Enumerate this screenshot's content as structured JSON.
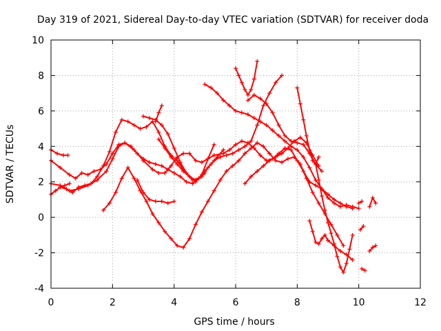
{
  "chart_data": {
    "type": "scatter",
    "title": "Day 319 of 2021, Sidereal Day-to-day VTEC variation (SDTVAR) for receiver doda",
    "xlabel": "GPS time / hours",
    "ylabel": "SDTVAR / TECUs",
    "xlim": [
      0,
      12
    ],
    "ylim": [
      -4,
      10
    ],
    "xticks": [
      0,
      2,
      4,
      6,
      8,
      10,
      12
    ],
    "yticks": [
      -4,
      -2,
      0,
      2,
      4,
      6,
      8,
      10
    ],
    "grid": true,
    "marker": "plus",
    "color": "#ff0000",
    "series": [
      {
        "x": [
          0.0,
          0.2,
          0.4,
          0.55
        ],
        "y": [
          3.8,
          3.6,
          3.5,
          3.5
        ]
      },
      {
        "x": [
          0.0,
          0.15,
          0.3,
          0.45,
          0.6
        ],
        "y": [
          1.3,
          1.5,
          1.7,
          1.8,
          1.9
        ]
      },
      {
        "x": [
          0.0,
          0.3,
          0.6,
          0.8,
          1.0,
          1.2,
          1.4,
          1.6,
          1.8,
          2.0,
          2.2,
          2.4,
          2.7,
          3.0,
          3.3,
          3.5,
          3.7,
          3.9,
          4.1,
          4.3,
          4.5,
          4.7,
          4.9,
          5.1,
          5.3,
          5.6,
          5.8,
          6.0,
          6.2,
          6.4,
          6.6,
          6.8,
          7.0,
          7.2,
          7.4,
          7.6,
          7.8,
          8.0,
          8.2,
          8.4,
          8.6,
          8.8,
          9.0,
          9.2,
          9.4,
          9.6,
          9.8
        ],
        "y": [
          3.2,
          2.8,
          2.4,
          2.2,
          2.5,
          2.4,
          2.6,
          2.7,
          3.0,
          3.6,
          4.1,
          4.2,
          3.8,
          3.2,
          2.7,
          2.5,
          2.5,
          2.9,
          3.4,
          3.6,
          3.6,
          3.2,
          3.1,
          3.3,
          3.5,
          3.6,
          3.8,
          4.1,
          4.3,
          4.2,
          3.9,
          3.5,
          3.2,
          3.3,
          3.6,
          3.9,
          3.8,
          3.2,
          2.6,
          2.0,
          1.8,
          1.6,
          1.3,
          1.0,
          0.8,
          0.6,
          0.5
        ]
      },
      {
        "x": [
          0.0,
          0.3,
          0.6,
          0.9,
          1.2,
          1.5,
          1.8,
          2.0,
          2.2,
          2.4,
          2.6,
          2.8,
          3.0,
          3.2,
          3.4,
          3.6,
          3.8,
          4.0,
          4.2,
          4.4,
          4.6,
          4.8,
          5.0,
          5.2,
          5.4,
          5.6
        ],
        "y": [
          1.9,
          1.8,
          1.5,
          1.6,
          1.8,
          2.1,
          2.6,
          3.3,
          4.0,
          4.2,
          4.0,
          3.6,
          3.3,
          3.1,
          3.0,
          2.9,
          2.7,
          2.5,
          2.3,
          2.0,
          1.9,
          2.2,
          2.6,
          3.0,
          3.4,
          3.8
        ]
      },
      {
        "x": [
          0.3,
          0.5,
          0.7,
          0.9,
          1.1,
          1.3,
          1.5,
          1.7,
          1.9,
          2.1,
          2.3,
          2.5,
          2.7,
          2.9,
          3.1,
          3.3,
          3.5,
          3.7,
          3.9,
          4.1,
          4.3,
          4.5,
          4.7,
          4.9,
          5.1,
          5.3,
          5.5,
          5.7,
          5.9,
          6.1,
          6.3,
          6.5,
          6.7,
          6.9,
          7.1,
          7.3,
          7.5
        ],
        "y": [
          1.7,
          1.6,
          1.4,
          1.7,
          1.8,
          1.9,
          2.3,
          2.9,
          3.7,
          4.8,
          5.5,
          5.4,
          5.2,
          5.0,
          5.1,
          5.4,
          4.8,
          4.0,
          3.5,
          3.2,
          2.7,
          2.3,
          2.1,
          2.3,
          2.8,
          3.2,
          3.4,
          3.5,
          3.6,
          3.8,
          4.0,
          4.3,
          5.2,
          6.3,
          7.0,
          7.6,
          8.0
        ]
      },
      {
        "x": [
          1.7,
          1.9,
          2.1,
          2.3,
          2.5,
          2.7,
          2.9,
          3.1,
          3.3,
          3.5,
          3.7,
          3.9,
          4.1,
          4.3,
          4.5,
          4.7,
          4.9,
          5.1,
          5.3,
          5.5,
          5.7,
          5.9,
          6.1,
          6.3,
          6.5,
          6.7,
          6.9,
          7.1,
          7.3,
          7.5,
          7.7,
          7.9,
          8.1,
          8.3,
          8.5,
          8.7,
          8.9,
          9.1,
          9.3,
          9.5
        ],
        "y": [
          0.4,
          0.8,
          1.4,
          2.2,
          2.8,
          2.2,
          1.5,
          0.9,
          0.2,
          -0.3,
          -0.8,
          -1.2,
          -1.6,
          -1.7,
          -1.2,
          -0.4,
          0.3,
          0.9,
          1.5,
          2.1,
          2.6,
          2.9,
          3.2,
          3.6,
          3.9,
          4.2,
          4.0,
          3.6,
          3.2,
          3.1,
          3.3,
          3.4,
          3.0,
          2.2,
          1.4,
          0.8,
          0.2,
          -0.4,
          -1.0,
          -1.6
        ]
      },
      {
        "x": [
          3.0,
          3.2,
          3.4,
          3.6,
          3.8,
          4.0,
          4.2,
          4.4,
          4.6,
          4.8,
          5.0
        ],
        "y": [
          5.7,
          5.6,
          5.5,
          5.2,
          4.7,
          3.9,
          3.1,
          2.5,
          2.1,
          2.2,
          2.5
        ]
      },
      {
        "x": [
          2.8,
          3.0,
          3.2,
          3.4,
          3.6,
          3.8,
          4.0
        ],
        "y": [
          2.1,
          1.4,
          1.0,
          0.9,
          0.9,
          0.8,
          0.9
        ]
      },
      {
        "x": [
          3.4,
          3.5,
          3.6
        ],
        "y": [
          5.4,
          5.9,
          6.3
        ]
      },
      {
        "x": [
          3.5,
          3.7,
          3.9,
          4.1,
          4.3,
          4.5,
          4.7,
          4.9,
          5.1,
          5.3
        ],
        "y": [
          4.4,
          3.9,
          3.4,
          3.0,
          2.6,
          2.3,
          2.0,
          2.4,
          3.3,
          4.1
        ]
      },
      {
        "x": [
          5.0,
          5.2,
          5.4,
          5.6,
          5.8,
          6.0,
          6.2,
          6.4,
          6.6,
          6.8,
          7.0,
          7.2,
          7.4,
          7.6,
          7.8,
          8.0,
          8.2,
          8.4,
          8.6,
          8.8,
          9.0,
          9.2,
          9.4,
          9.6,
          9.8,
          10.0
        ],
        "y": [
          7.5,
          7.3,
          7.0,
          6.6,
          6.3,
          6.0,
          5.9,
          5.8,
          5.6,
          5.4,
          5.2,
          4.9,
          4.6,
          4.3,
          4.0,
          3.8,
          3.4,
          2.8,
          2.1,
          1.6,
          1.1,
          0.8,
          0.6,
          0.7,
          0.6,
          0.5
        ]
      },
      {
        "x": [
          6.0,
          6.1,
          6.2,
          6.3,
          6.4,
          6.5,
          6.6,
          6.7
        ],
        "y": [
          8.4,
          8.0,
          7.6,
          7.2,
          6.9,
          7.2,
          7.8,
          8.8
        ]
      },
      {
        "x": [
          6.4,
          6.6,
          6.8,
          7.0,
          7.2,
          7.4,
          7.6,
          7.8,
          8.0,
          8.2,
          8.4,
          8.6,
          8.8
        ],
        "y": [
          6.6,
          6.9,
          6.7,
          6.4,
          5.9,
          5.2,
          4.6,
          4.3,
          4.2,
          4.1,
          3.6,
          3.0,
          2.6
        ]
      },
      {
        "x": [
          6.3,
          6.5,
          6.7,
          6.9,
          7.1,
          7.3,
          7.5,
          7.7,
          7.9,
          8.1,
          8.3,
          8.5,
          8.7
        ],
        "y": [
          1.9,
          2.3,
          2.6,
          2.9,
          3.2,
          3.4,
          3.6,
          3.9,
          4.3,
          4.5,
          4.2,
          3.5,
          2.9
        ]
      },
      {
        "x": [
          8.0,
          8.1,
          8.2,
          8.3,
          8.4,
          8.5,
          8.6,
          8.7
        ],
        "y": [
          7.3,
          6.4,
          5.5,
          4.6,
          3.8,
          3.2,
          3.0,
          3.4
        ]
      },
      {
        "x": [
          8.6,
          8.7,
          8.8,
          8.9,
          9.0,
          9.1,
          9.2,
          9.3,
          9.4,
          9.5,
          9.6,
          9.7,
          9.8
        ],
        "y": [
          3.0,
          2.1,
          1.2,
          0.4,
          -0.3,
          -0.9,
          -1.5,
          -2.2,
          -2.8,
          -3.1,
          -2.6,
          -1.8,
          -1.0
        ]
      },
      {
        "x": [
          8.4,
          8.5,
          8.6,
          8.7,
          8.8,
          8.9,
          9.0,
          9.2,
          9.4,
          9.6,
          9.8
        ],
        "y": [
          -0.2,
          -0.8,
          -1.4,
          -1.5,
          -1.2,
          -1.0,
          -1.3,
          -1.6,
          -1.9,
          -2.1,
          -2.4
        ]
      },
      {
        "x": [
          10.0,
          10.1
        ],
        "y": [
          0.8,
          0.9
        ]
      },
      {
        "x": [
          10.05,
          10.15
        ],
        "y": [
          -0.7,
          -0.5
        ]
      },
      {
        "x": [
          10.1,
          10.2
        ],
        "y": [
          -2.9,
          -3.0
        ]
      },
      {
        "x": [
          10.35,
          10.45,
          10.55
        ],
        "y": [
          0.6,
          1.1,
          0.8
        ]
      },
      {
        "x": [
          10.35,
          10.45,
          10.55
        ],
        "y": [
          -1.9,
          -1.7,
          -1.6
        ]
      }
    ]
  }
}
